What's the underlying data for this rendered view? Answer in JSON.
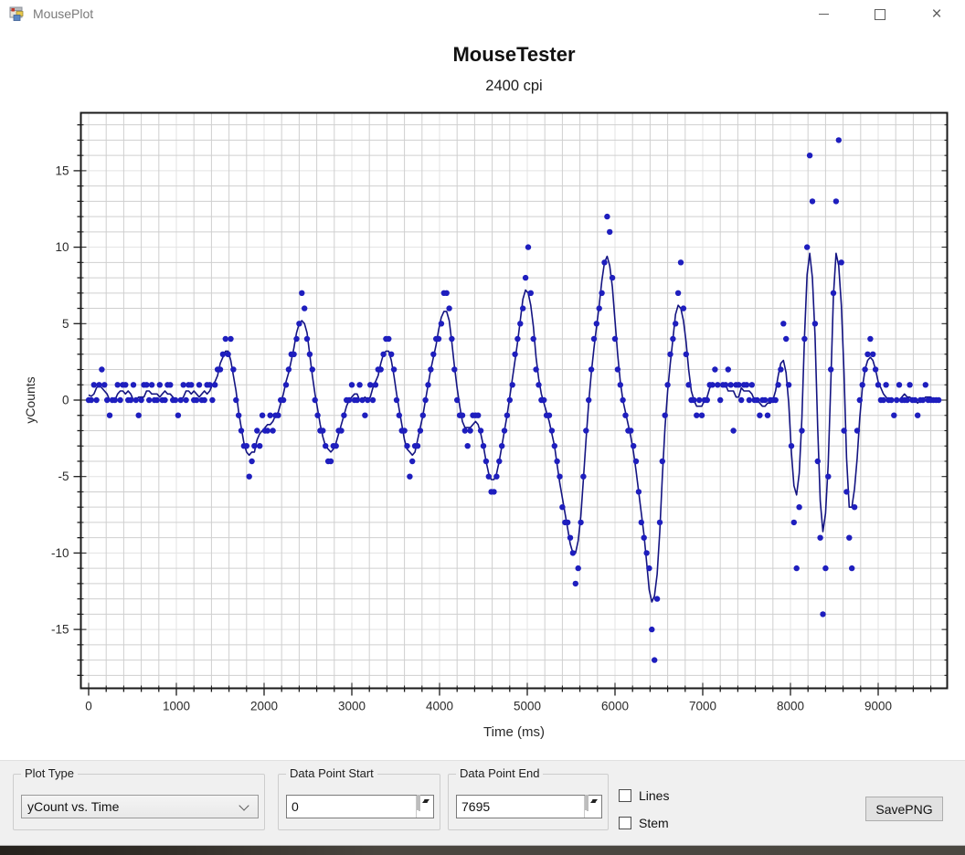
{
  "window": {
    "title": "MousePlot",
    "buttons": {
      "minimize": "minimize",
      "maximize": "maximize",
      "close": "×"
    }
  },
  "chart": {
    "title": "MouseTester",
    "subtitle": "2400 cpi"
  },
  "chart_data": {
    "type": "scatter",
    "title": "MouseTester",
    "subtitle": "2400 cpi",
    "xlabel": "Time (ms)",
    "ylabel": "yCounts",
    "xlim": [
      -95,
      9790
    ],
    "ylim": [
      -18.8,
      18.8
    ],
    "x_ticks": [
      0,
      1000,
      2000,
      3000,
      4000,
      5000,
      6000,
      7000,
      8000,
      9000
    ],
    "y_ticks": [
      -15,
      -10,
      -5,
      0,
      5,
      10,
      15
    ],
    "x_minor_step": 200,
    "y_minor_step": 1,
    "grid": true,
    "legend": false,
    "series": [
      {
        "name": "yCount",
        "style": "scatter-with-fit-line",
        "marker_color": "#1e1ebe",
        "line_color": "#141482",
        "fit_line": {
          "method": "moving_average",
          "window": 5
        },
        "x_start_ms": 0,
        "x_step_ms": 30,
        "n_points": 324,
        "y": [
          0,
          0,
          1,
          0,
          1,
          2,
          1,
          0,
          -1,
          0,
          0,
          1,
          0,
          1,
          1,
          0,
          0,
          1,
          0,
          -1,
          0,
          1,
          1,
          0,
          1,
          0,
          0,
          1,
          0,
          0,
          1,
          1,
          0,
          0,
          -1,
          0,
          1,
          0,
          1,
          1,
          0,
          0,
          1,
          0,
          0,
          1,
          1,
          0,
          1,
          2,
          2,
          3,
          4,
          3,
          4,
          2,
          0,
          -1,
          -2,
          -3,
          -3,
          -5,
          -4,
          -3,
          -2,
          -3,
          -1,
          -2,
          -2,
          -1,
          -2,
          -1,
          -1,
          0,
          0,
          1,
          2,
          3,
          3,
          4,
          5,
          7,
          6,
          4,
          3,
          2,
          0,
          -1,
          -2,
          -2,
          -3,
          -4,
          -4,
          -3,
          -3,
          -2,
          -2,
          -1,
          0,
          0,
          1,
          0,
          0,
          1,
          0,
          -1,
          0,
          1,
          0,
          1,
          2,
          2,
          3,
          4,
          4,
          3,
          2,
          0,
          -1,
          -2,
          -2,
          -3,
          -5,
          -4,
          -3,
          -3,
          -2,
          -1,
          0,
          1,
          2,
          3,
          4,
          4,
          5,
          7,
          7,
          6,
          4,
          2,
          0,
          -1,
          -1,
          -2,
          -3,
          -2,
          -1,
          -1,
          -1,
          -2,
          -3,
          -4,
          -5,
          -6,
          -6,
          -5,
          -4,
          -3,
          -2,
          -1,
          0,
          1,
          3,
          4,
          5,
          6,
          8,
          10,
          7,
          4,
          2,
          1,
          0,
          0,
          -1,
          -1,
          -2,
          -3,
          -4,
          -5,
          -7,
          -8,
          -8,
          -9,
          -10,
          -12,
          -11,
          -8,
          -5,
          -2,
          0,
          2,
          4,
          5,
          6,
          7,
          9,
          12,
          11,
          8,
          4,
          2,
          1,
          0,
          -1,
          -2,
          -2,
          -3,
          -4,
          -6,
          -8,
          -9,
          -10,
          -11,
          -15,
          -17,
          -13,
          -8,
          -4,
          -1,
          1,
          3,
          4,
          5,
          7,
          9,
          6,
          3,
          1,
          0,
          0,
          -1,
          0,
          -1,
          0,
          0,
          1,
          1,
          2,
          1,
          0,
          1,
          1,
          2,
          1,
          -2,
          1,
          1,
          0,
          1,
          1,
          0,
          1,
          0,
          0,
          -1,
          0,
          0,
          -1,
          0,
          0,
          0,
          1,
          2,
          5,
          4,
          1,
          -3,
          -8,
          -11,
          -7,
          -2,
          4,
          10,
          16,
          13,
          5,
          -4,
          -9,
          -14,
          -11,
          -5,
          2,
          7,
          13,
          17,
          9,
          -2,
          -6,
          -9,
          -11,
          -7,
          -2,
          0,
          1,
          2,
          3,
          4,
          3,
          2,
          1,
          0,
          0,
          1,
          0,
          0,
          -1,
          0,
          1,
          0,
          0,
          0,
          1,
          0,
          0,
          -1,
          0,
          0,
          1,
          0,
          0,
          0,
          0,
          0
        ]
      }
    ]
  },
  "controls": {
    "plot_type": {
      "label": "Plot Type",
      "value": "yCount vs. Time"
    },
    "data_point_start": {
      "label": "Data Point Start",
      "value": "0"
    },
    "data_point_end": {
      "label": "Data Point End",
      "value": "7695"
    },
    "lines_checkbox": {
      "label": "Lines",
      "checked": false
    },
    "stem_checkbox": {
      "label": "Stem",
      "checked": false
    },
    "save_button_label": "SavePNG"
  },
  "colors": {
    "marker": "#1e1ebe",
    "fit_line": "#141482",
    "grid_minor": "#e3e3e3",
    "grid_major": "#cfcfcf",
    "plot_border": "#1a1a1a",
    "panel_bg": "#f0f0f0",
    "titlebar_text": "#7a7a7a"
  }
}
